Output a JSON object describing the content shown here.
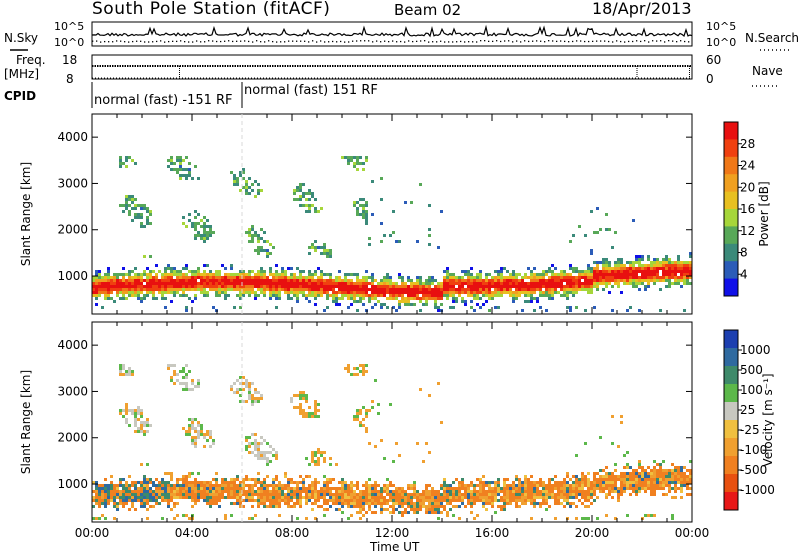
{
  "header": {
    "station": "South Pole Station (fitACF)",
    "beam": "Beam 02",
    "date": "18/Apr/2013"
  },
  "strip": {
    "nsky_label": "N.Sky",
    "nsearch_label": "N.Search",
    "freq_label": "Freq.",
    "freq_unit": "[MHz]",
    "nave_label": "Nave",
    "cpid_label": "CPID",
    "nsky_ticks": [
      "10^5",
      "10^0"
    ],
    "nsearch_ticks": [
      "10^5",
      "10^0"
    ],
    "freq_ticks": [
      "18",
      "8"
    ],
    "nave_ticks": [
      "60",
      "0"
    ],
    "cpid_segments": [
      {
        "label": "normal (fast) -151 RF",
        "start_h": 0.0,
        "end_h": 6.0
      },
      {
        "label": "normal (fast) 151 RF",
        "start_h": 6.0,
        "end_h": 24.0
      }
    ]
  },
  "chart_data": [
    {
      "type": "heatmap",
      "name": "power",
      "ylabel": "Slant Range [km]",
      "xlabel": "",
      "xlim": [
        0,
        24
      ],
      "ylim": [
        180,
        4500
      ],
      "yticks": [
        1000,
        2000,
        3000,
        4000
      ],
      "colorbar": {
        "label": "Power [dB]",
        "ticks": [
          "4",
          "8",
          "12",
          "16",
          "20",
          "24",
          "28"
        ],
        "range": [
          0,
          30
        ],
        "colors": [
          "#1010e8",
          "#2b5cb8",
          "#3b8a7a",
          "#58a858",
          "#a6d63a",
          "#e8c020",
          "#f0a020",
          "#f07818",
          "#f04010",
          "#e81010"
        ]
      }
    },
    {
      "type": "heatmap",
      "name": "velocity",
      "ylabel": "Slant Range [km]",
      "xlabel": "Time UT",
      "xlim": [
        0,
        24
      ],
      "ylim": [
        180,
        4500
      ],
      "yticks": [
        1000,
        2000,
        3000,
        4000
      ],
      "xticks": [
        "00:00",
        "04:00",
        "08:00",
        "12:00",
        "16:00",
        "20:00",
        "00:00"
      ],
      "colorbar": {
        "label": "Velocity [m s⁻¹]",
        "ticks": [
          "1000",
          "500",
          "100",
          "25",
          "-25",
          "-100",
          "-500",
          "-1000"
        ],
        "colors": [
          "#1c3fb0",
          "#2f6aa0",
          "#3e8a6a",
          "#5cb84a",
          "#c8c8c0",
          "#f0c040",
          "#f0a030",
          "#f08020",
          "#e85010",
          "#e81818"
        ]
      }
    }
  ]
}
